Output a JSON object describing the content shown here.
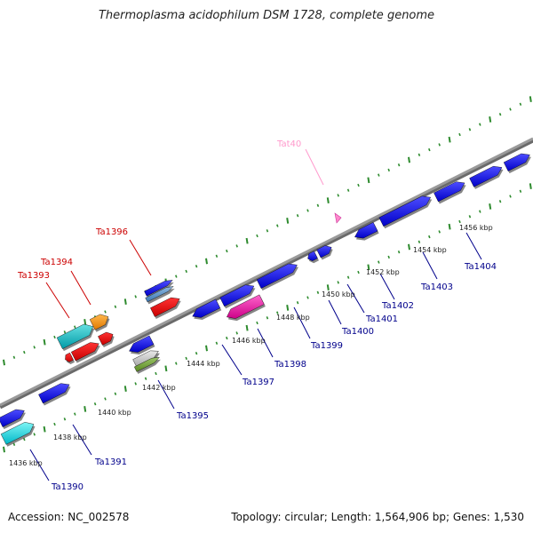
{
  "title": "Thermoplasma acidophilum DSM 1728, complete genome",
  "accession": "Accession: NC_002578",
  "summary": "Topology: circular; Length: 1,564,906 bp; Genes: 1,530",
  "colors": {
    "backbone": "#8c8c8c",
    "tick": "#2e8b2e",
    "plus_label": "#cc0000",
    "minus_label": "#00008b",
    "trna_label": "#ff99cc"
  },
  "scale_labels": [
    "1436 kbp",
    "1438 kbp",
    "1440 kbp",
    "1442 kbp",
    "1444 kbp",
    "1446 kbp",
    "1448 kbp",
    "1450 kbp",
    "1452 kbp",
    "1454 kbp",
    "1456 kbp"
  ],
  "labels": [
    {
      "text": "Tat40",
      "color": "trna"
    },
    {
      "text": "Ta1396",
      "color": "plus"
    },
    {
      "text": "Ta1394",
      "color": "plus"
    },
    {
      "text": "Ta1393",
      "color": "plus"
    },
    {
      "text": "Ta1404",
      "color": "minus"
    },
    {
      "text": "Ta1403",
      "color": "minus"
    },
    {
      "text": "Ta1402",
      "color": "minus"
    },
    {
      "text": "Ta1401",
      "color": "minus"
    },
    {
      "text": "Ta1400",
      "color": "minus"
    },
    {
      "text": "Ta1399",
      "color": "minus"
    },
    {
      "text": "Ta1398",
      "color": "minus"
    },
    {
      "text": "Ta1397",
      "color": "minus"
    },
    {
      "text": "Ta1395",
      "color": "minus"
    },
    {
      "text": "Ta1391",
      "color": "minus"
    },
    {
      "text": "Ta1390",
      "color": "minus"
    }
  ]
}
